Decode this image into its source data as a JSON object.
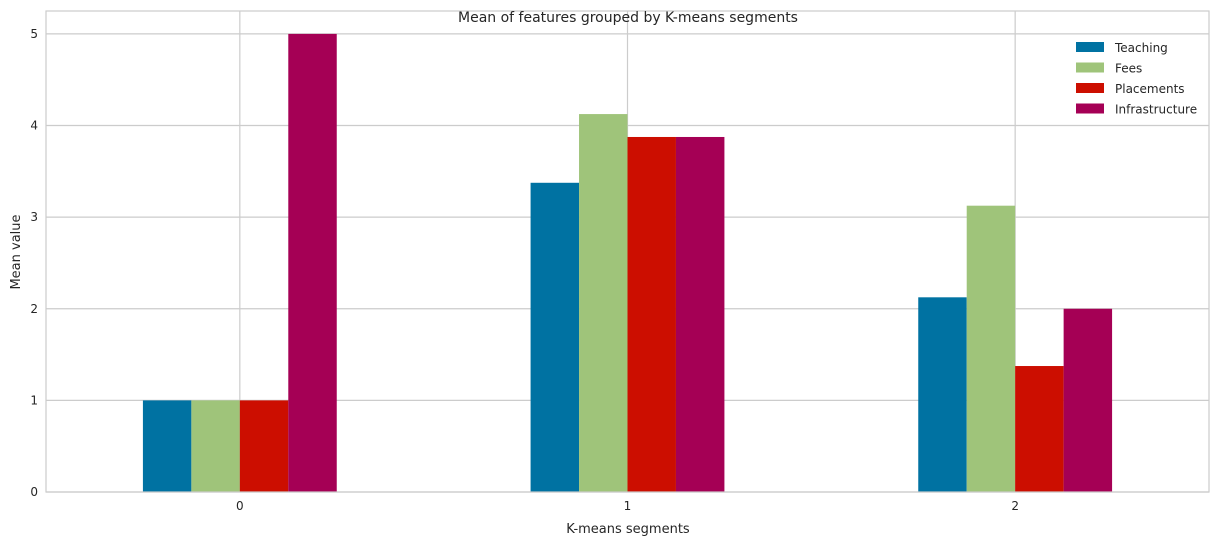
{
  "chart_data": {
    "type": "bar",
    "title": "Mean of features grouped by K-means segments",
    "xlabel": "K-means segments",
    "ylabel": "Mean value",
    "categories": [
      "0",
      "1",
      "2"
    ],
    "ylim": [
      0,
      5.25
    ],
    "yticks": [
      "0",
      "1",
      "2",
      "3",
      "4",
      "5"
    ],
    "grid": true,
    "legend_position": "top-right",
    "series": [
      {
        "name": "Teaching",
        "color": "#0072a2",
        "values": [
          1.0,
          3.375,
          2.125
        ]
      },
      {
        "name": "Fees",
        "color": "#9fc47a",
        "values": [
          1.0,
          4.125,
          3.125
        ]
      },
      {
        "name": "Placements",
        "color": "#cc0e00",
        "values": [
          1.0,
          3.875,
          1.375
        ]
      },
      {
        "name": "Infrastructure",
        "color": "#a50055",
        "values": [
          5.0,
          3.875,
          2.0
        ]
      }
    ]
  }
}
